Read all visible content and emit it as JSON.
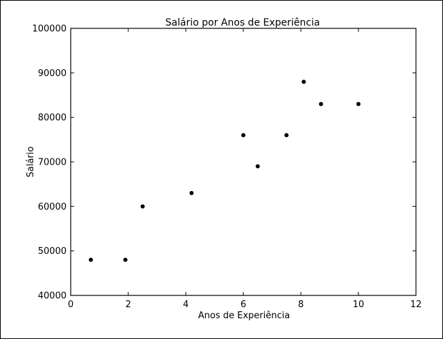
{
  "chart_data": {
    "type": "scatter",
    "title": "Salário por Anos de Experiência",
    "xlabel": "Anos de Experiência",
    "ylabel": "Salário",
    "xlim": [
      0,
      12
    ],
    "ylim": [
      40000,
      100000
    ],
    "xticks": [
      0,
      2,
      4,
      6,
      8,
      10,
      12
    ],
    "yticks": [
      40000,
      50000,
      60000,
      70000,
      80000,
      90000,
      100000
    ],
    "grid": false,
    "marker_color": "#000000",
    "points": [
      {
        "x": 0.7,
        "y": 48000
      },
      {
        "x": 1.9,
        "y": 48000
      },
      {
        "x": 2.5,
        "y": 60000
      },
      {
        "x": 4.2,
        "y": 63000
      },
      {
        "x": 6.0,
        "y": 76000
      },
      {
        "x": 6.5,
        "y": 69000
      },
      {
        "x": 7.5,
        "y": 76000
      },
      {
        "x": 8.1,
        "y": 88000
      },
      {
        "x": 8.7,
        "y": 83000
      },
      {
        "x": 10.0,
        "y": 83000
      }
    ]
  }
}
